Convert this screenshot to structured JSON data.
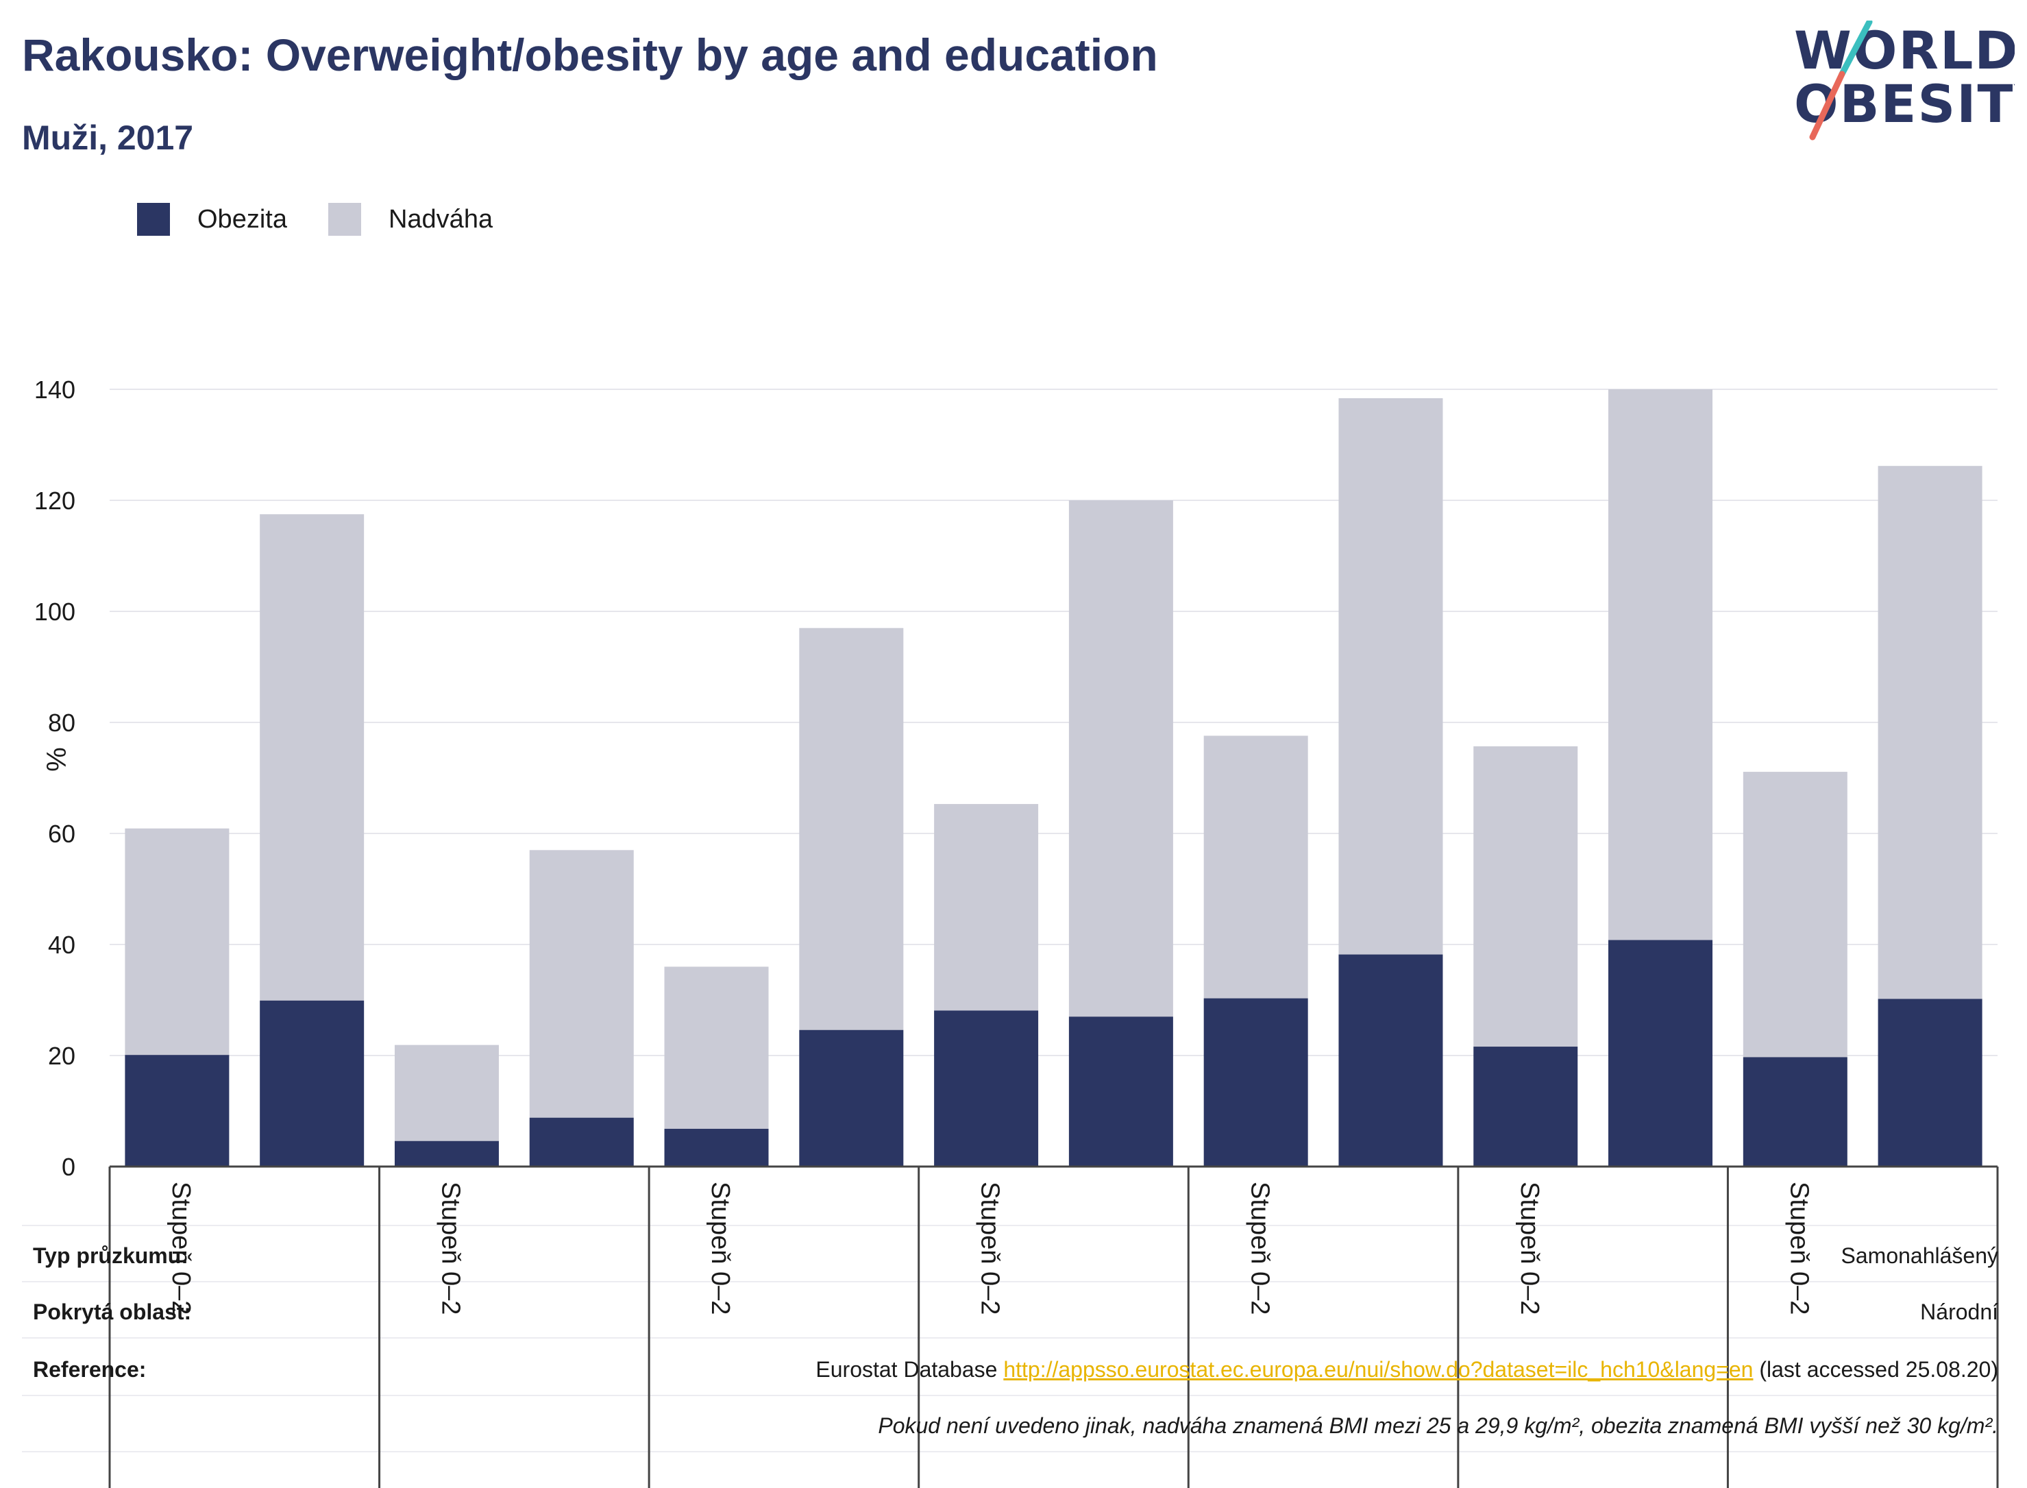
{
  "header": {
    "title": "Rakousko: Overweight/obesity by age and education",
    "subtitle": "Muži, 2017"
  },
  "logo": {
    "line1": "WORLD",
    "line2": "OBESITY",
    "colors": {
      "text": "#2b3663",
      "slash_top": "#3bbfbf",
      "slash_bottom": "#e8685a"
    }
  },
  "legend": [
    {
      "label": "Obezita",
      "color": "#2b3663"
    },
    {
      "label": "Nadváha",
      "color": "#cacbd6"
    }
  ],
  "chart_data": {
    "type": "bar",
    "stacked": true,
    "ylabel": "%",
    "ylim": [
      0,
      140
    ],
    "yticks": [
      0,
      20,
      40,
      60,
      80,
      100,
      120,
      140
    ],
    "grid": true,
    "legend_position": "top-left",
    "group_labels": [
      "Stupeň 0–2",
      "Stupeň 0–2",
      "Stupeň 0–2",
      "Stupeň 0–2",
      "Stupeň 0–2",
      "Stupeň 0–2",
      "Stupeň 0–2"
    ],
    "series": [
      {
        "name": "Obezita",
        "color": "#2b3663",
        "values": [
          20.1,
          29.9,
          4.6,
          8.8,
          6.8,
          24.6,
          28.1,
          27.0,
          30.3,
          38.2,
          21.6,
          40.8,
          19.7,
          30.2
        ]
      },
      {
        "name": "Nadváha",
        "color": "#cacbd6",
        "values": [
          40.8,
          87.6,
          17.3,
          48.2,
          29.2,
          72.4,
          37.2,
          93.0,
          47.3,
          100.2,
          54.1,
          99.2,
          51.4,
          96.0
        ]
      }
    ]
  },
  "info": {
    "survey_type_label": "Typ průzkumu:",
    "survey_type_value": "Samonahlášený",
    "area_label": "Pokrytá oblast:",
    "area_value": "Národní",
    "reference_label": "Reference:",
    "reference_prefix": "Eurostat Database ",
    "reference_link": "http://appsso.eurostat.ec.europa.eu/nui/show.do?dataset=ilc_hch10&lang=en",
    "reference_suffix": " (last accessed 25.08.20)",
    "note": "Pokud není uvedeno jinak, nadváha znamená BMI mezi 25 a 29,9 kg/m², obezita znamená BMI vyšší než 30 kg/m²."
  }
}
